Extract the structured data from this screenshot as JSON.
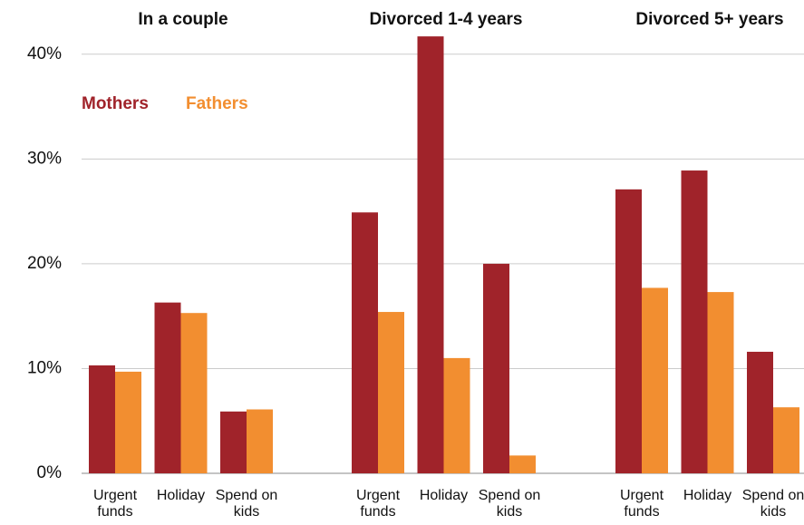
{
  "chart_data": {
    "type": "bar",
    "groups": [
      {
        "title": "In a couple",
        "categories": [
          "Urgent funds",
          "Holiday",
          "Spend on kids"
        ]
      },
      {
        "title": "Divorced 1-4 years",
        "categories": [
          "Urgent funds",
          "Holiday",
          "Spend on kids"
        ]
      },
      {
        "title": "Divorced 5+ years",
        "categories": [
          "Urgent funds",
          "Holiday",
          "Spend on kids"
        ]
      }
    ],
    "series": [
      {
        "name": "Mothers",
        "color": "#a0232a",
        "values": [
          [
            10.3,
            16.3,
            5.9
          ],
          [
            24.9,
            41.7,
            20.0
          ],
          [
            27.1,
            28.9,
            11.6
          ]
        ]
      },
      {
        "name": "Fathers",
        "color": "#f28e30",
        "values": [
          [
            9.7,
            15.3,
            6.1
          ],
          [
            15.4,
            11.0,
            1.7
          ],
          [
            17.7,
            17.3,
            6.3
          ]
        ]
      }
    ],
    "ylim": [
      0,
      45
    ],
    "yticks": [
      {
        "value": 0,
        "label": "0%"
      },
      {
        "value": 10,
        "label": "10%"
      },
      {
        "value": 20,
        "label": "20%"
      },
      {
        "value": 30,
        "label": "30%"
      },
      {
        "value": 40,
        "label": "40%"
      }
    ],
    "grid": true
  }
}
